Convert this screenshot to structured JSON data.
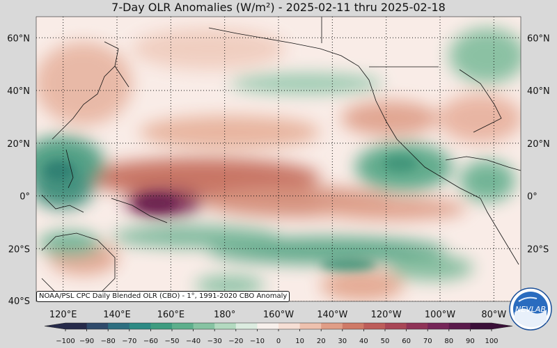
{
  "title": "7-Day OLR Anomalies (W/m²) - 2025-02-11 thru 2025-02-18",
  "source_note": "NOAA/PSL CPC Daily Blended OLR (CBO) - 1°, 1991-2020 CBO Anomaly",
  "logo_text": "NEVLAB",
  "map": {
    "lat_labels": [
      "60°N",
      "40°N",
      "20°N",
      "0°",
      "20°S",
      "40°S"
    ],
    "lat_values": [
      60,
      40,
      20,
      0,
      -20,
      -40
    ],
    "lon_labels": [
      "120°E",
      "140°E",
      "160°E",
      "180°",
      "160°W",
      "140°W",
      "120°W",
      "100°W",
      "80°W"
    ],
    "lon_values": [
      120,
      140,
      160,
      180,
      200,
      220,
      240,
      260,
      280
    ],
    "extent": {
      "lon_min": 110,
      "lon_max": 290,
      "lat_min": -40,
      "lat_max": 68
    }
  },
  "colorbar": {
    "ticks": [
      "−100",
      "−90",
      "−80",
      "−70",
      "−60",
      "−50",
      "−40",
      "−30",
      "−20",
      "−10",
      "0",
      "10",
      "20",
      "30",
      "40",
      "50",
      "60",
      "70",
      "80",
      "90",
      "100"
    ],
    "min": -100,
    "max": 100,
    "stops": [
      "#262a4a",
      "#2f4a6b",
      "#2d6e80",
      "#2c8a84",
      "#3e9c80",
      "#5daf8c",
      "#86c3a2",
      "#b3dac0",
      "#dcece0",
      "#f7f0ec",
      "#f6dfd5",
      "#eec1ae",
      "#e09d86",
      "#cf7a67",
      "#bd5d5a",
      "#a84656",
      "#8f3357",
      "#752558",
      "#5a1a4b",
      "#3a0f38"
    ]
  },
  "colors": {
    "background": "#d9d9d9",
    "neutral": "#fbefea",
    "positive": "#c86a5e",
    "negative": "#4f9e80"
  }
}
